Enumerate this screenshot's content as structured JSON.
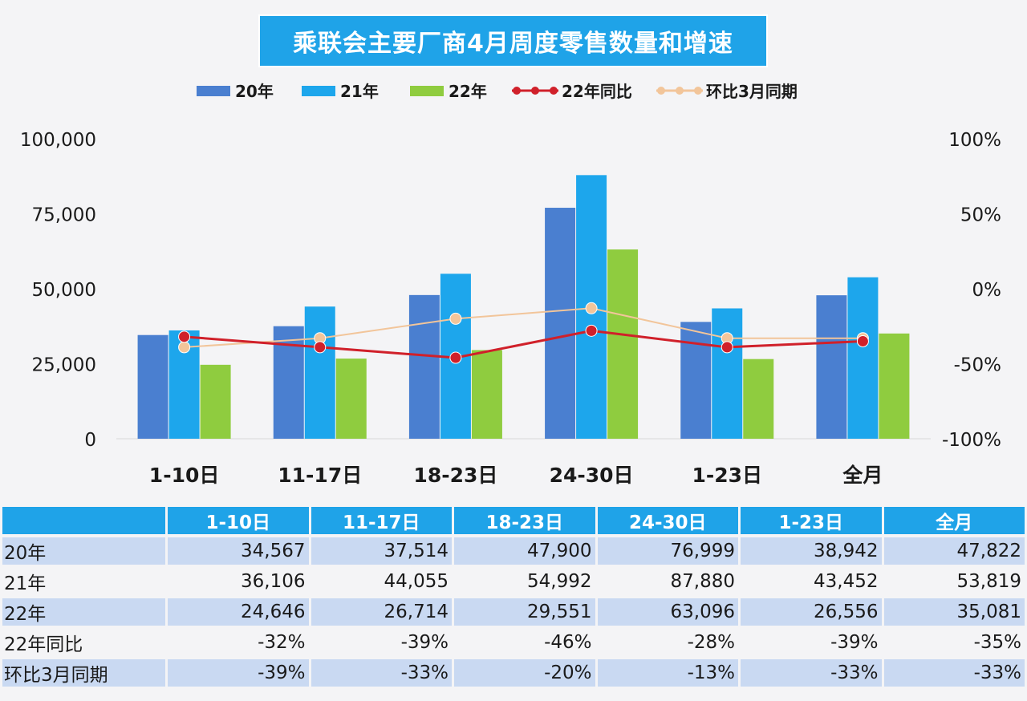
{
  "chart_data": {
    "type": "bar",
    "title": "乘联会主要厂商4月周度零售数量和增速",
    "categories": [
      "1-10日",
      "11-17日",
      "18-23日",
      "24-30日",
      "1-23日",
      "全月"
    ],
    "series": [
      {
        "name": "20年",
        "kind": "bar",
        "axis": "left",
        "color": "#4a7fd0",
        "values": [
          34567,
          37514,
          47900,
          76999,
          38942,
          47822
        ]
      },
      {
        "name": "21年",
        "kind": "bar",
        "axis": "left",
        "color": "#1da6ec",
        "values": [
          36106,
          44055,
          54992,
          87880,
          43452,
          53819
        ]
      },
      {
        "name": "22年",
        "kind": "bar",
        "axis": "left",
        "color": "#8fcc3f",
        "values": [
          24646,
          26714,
          29551,
          63096,
          26556,
          35081
        ]
      },
      {
        "name": "22年同比",
        "kind": "line",
        "axis": "right",
        "color": "#d0202a",
        "values": [
          -32,
          -39,
          -46,
          -28,
          -39,
          -35
        ]
      },
      {
        "name": "环比3月同期",
        "kind": "line",
        "axis": "right",
        "color": "#f2c59a",
        "values": [
          -39,
          -33,
          -20,
          -13,
          -33,
          -33
        ]
      }
    ],
    "y_left": {
      "ylim": [
        0,
        100000
      ],
      "ticks": [
        "0",
        "25,000",
        "50,000",
        "75,000",
        "100,000"
      ]
    },
    "y_right": {
      "ylim": [
        -100,
        100
      ],
      "ticks": [
        "-100%",
        "-50%",
        "0%",
        "50%",
        "100%"
      ]
    },
    "grid": false,
    "legend_position": "top"
  },
  "table": {
    "header": [
      "1-10日",
      "11-17日",
      "18-23日",
      "24-30日",
      "1-23日",
      "全月"
    ],
    "rows": [
      {
        "label": "20年",
        "cells": [
          "34,567",
          "37,514",
          "47,900",
          "76,999",
          "38,942",
          "47,822"
        ]
      },
      {
        "label": "21年",
        "cells": [
          "36,106",
          "44,055",
          "54,992",
          "87,880",
          "43,452",
          "53,819"
        ]
      },
      {
        "label": "22年",
        "cells": [
          "24,646",
          "26,714",
          "29,551",
          "63,096",
          "26,556",
          "35,081"
        ]
      },
      {
        "label": "22年同比",
        "cells": [
          "-32%",
          "-39%",
          "-46%",
          "-28%",
          "-39%",
          "-35%"
        ]
      },
      {
        "label": "环比3月同期",
        "cells": [
          "-39%",
          "-33%",
          "-20%",
          "-13%",
          "-33%",
          "-33%"
        ]
      }
    ]
  }
}
